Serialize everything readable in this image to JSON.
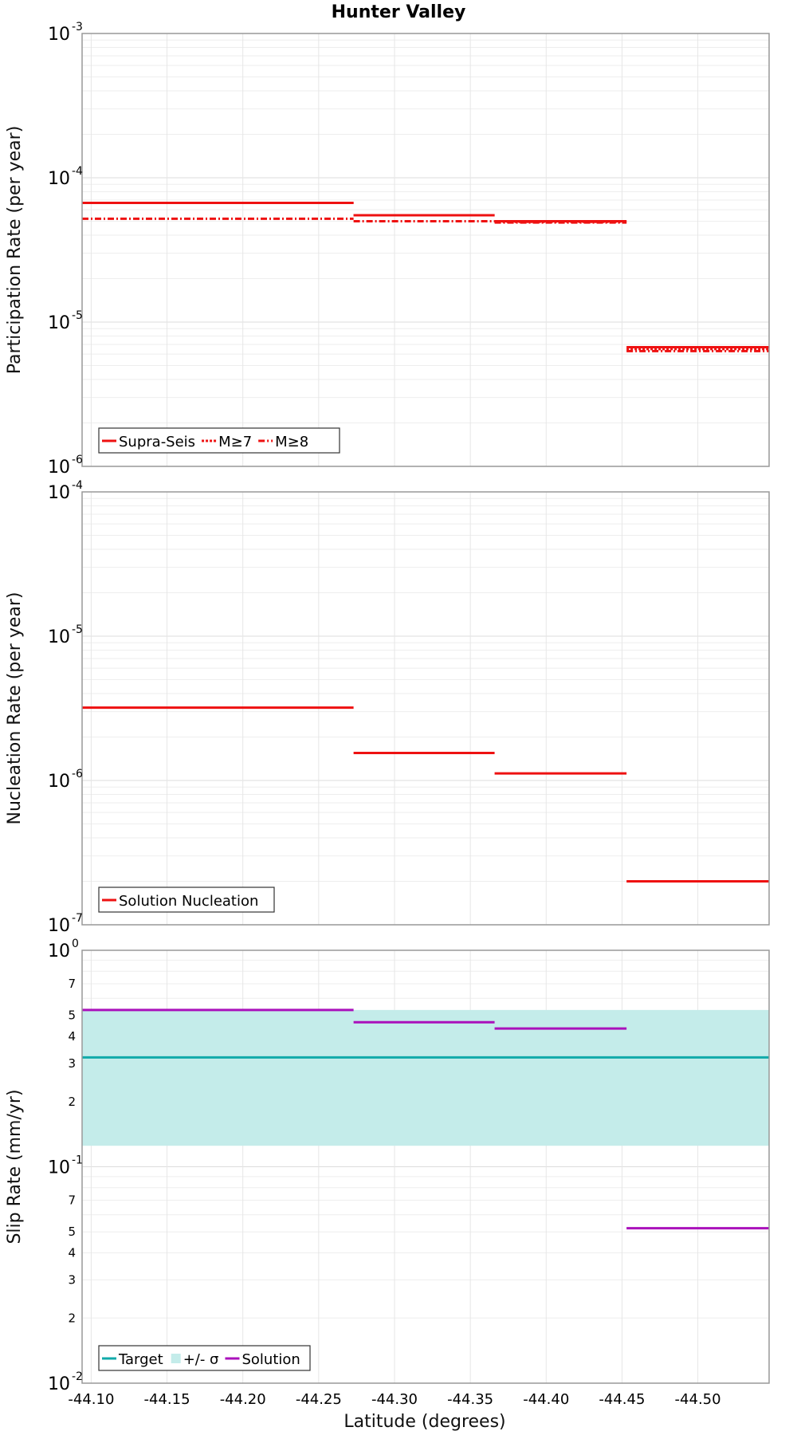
{
  "chart_data": {
    "type": "line",
    "title": "Hunter Valley",
    "xlabel": "Latitude (degrees)",
    "x_ticks": [
      "-44.10",
      "-44.15",
      "-44.20",
      "-44.25",
      "-44.30",
      "-44.35",
      "-44.40",
      "-44.45",
      "-44.50"
    ],
    "xlim": [
      -44.094,
      -44.547
    ],
    "colors": {
      "red": "#ee1111",
      "teal": "#11aaaa",
      "band": "#c4ecea",
      "magenta": "#aa11bb"
    },
    "panels": [
      {
        "ylabel": "Participation Rate (per year)",
        "yscale": "log",
        "ylim": [
          1e-06,
          0.001
        ],
        "major_ticks": [
          {
            "base": "10",
            "exp": "-6"
          },
          {
            "base": "10",
            "exp": "-5"
          },
          {
            "base": "10",
            "exp": "-4"
          },
          {
            "base": "10",
            "exp": "-3"
          }
        ],
        "minor_labels": [],
        "legend": [
          "Supra-Seis",
          "M≥7",
          "M≥8"
        ],
        "series": [
          {
            "name": "Supra-Seis",
            "style": "solid",
            "segments": [
              {
                "x0": -44.094,
                "x1": -44.273,
                "y": 6.7e-05
              },
              {
                "x0": -44.273,
                "x1": -44.366,
                "y": 5.5e-05
              },
              {
                "x0": -44.366,
                "x1": -44.453,
                "y": 5e-05
              },
              {
                "x0": -44.453,
                "x1": -44.547,
                "y": 6.7e-06
              }
            ]
          },
          {
            "name": "M≥7",
            "style": "dotted",
            "segments": [
              {
                "x0": -44.094,
                "x1": -44.273,
                "y": 6.7e-05
              },
              {
                "x0": -44.273,
                "x1": -44.366,
                "y": 5.5e-05
              },
              {
                "x0": -44.366,
                "x1": -44.453,
                "y": 4.95e-05
              },
              {
                "x0": -44.453,
                "x1": -44.547,
                "y": 6.5e-06
              }
            ]
          },
          {
            "name": "M≥8",
            "style": "dashdot",
            "segments": [
              {
                "x0": -44.094,
                "x1": -44.273,
                "y": 5.2e-05
              },
              {
                "x0": -44.273,
                "x1": -44.366,
                "y": 5e-05
              },
              {
                "x0": -44.366,
                "x1": -44.453,
                "y": 4.9e-05
              },
              {
                "x0": -44.453,
                "x1": -44.547,
                "y": 6.3e-06
              }
            ]
          }
        ]
      },
      {
        "ylabel": "Nucleation Rate (per year)",
        "yscale": "log",
        "ylim": [
          1e-07,
          0.0001
        ],
        "major_ticks": [
          {
            "base": "10",
            "exp": "-7"
          },
          {
            "base": "10",
            "exp": "-6"
          },
          {
            "base": "10",
            "exp": "-5"
          },
          {
            "base": "10",
            "exp": "-4"
          }
        ],
        "minor_labels": [],
        "legend": [
          "Solution Nucleation"
        ],
        "series": [
          {
            "name": "Solution Nucleation",
            "style": "solid",
            "segments": [
              {
                "x0": -44.094,
                "x1": -44.273,
                "y": 3.2e-06
              },
              {
                "x0": -44.273,
                "x1": -44.366,
                "y": 1.55e-06
              },
              {
                "x0": -44.366,
                "x1": -44.453,
                "y": 1.12e-06
              },
              {
                "x0": -44.453,
                "x1": -44.547,
                "y": 2e-07
              }
            ]
          }
        ]
      },
      {
        "ylabel": "Slip Rate (mm/yr)",
        "yscale": "log",
        "ylim": [
          0.01,
          1
        ],
        "major_ticks": [
          {
            "base": "10",
            "exp": "-2"
          },
          {
            "base": "10",
            "exp": "-1"
          },
          {
            "base": "10",
            "exp": "0"
          }
        ],
        "minor_labels": [
          {
            "value": 0.02,
            "label": "2"
          },
          {
            "value": 0.03,
            "label": "3"
          },
          {
            "value": 0.04,
            "label": "4"
          },
          {
            "value": 0.05,
            "label": "5"
          },
          {
            "value": 0.07,
            "label": "7"
          },
          {
            "value": 0.2,
            "label": "2"
          },
          {
            "value": 0.3,
            "label": "3"
          },
          {
            "value": 0.4,
            "label": "4"
          },
          {
            "value": 0.5,
            "label": "5"
          },
          {
            "value": 0.7,
            "label": "7"
          }
        ],
        "legend": [
          "Target",
          "+/- σ",
          "Solution"
        ],
        "band": {
          "name": "+/- σ",
          "y0": 0.125,
          "y1": 0.53
        },
        "series": [
          {
            "name": "Target",
            "style": "solid",
            "segments": [
              {
                "x0": -44.094,
                "x1": -44.547,
                "y": 0.32
              }
            ]
          },
          {
            "name": "Solution",
            "style": "solid",
            "segments": [
              {
                "x0": -44.094,
                "x1": -44.273,
                "y": 0.53
              },
              {
                "x0": -44.273,
                "x1": -44.366,
                "y": 0.465
              },
              {
                "x0": -44.366,
                "x1": -44.453,
                "y": 0.435
              },
              {
                "x0": -44.453,
                "x1": -44.547,
                "y": 0.052
              }
            ]
          }
        ]
      }
    ]
  }
}
